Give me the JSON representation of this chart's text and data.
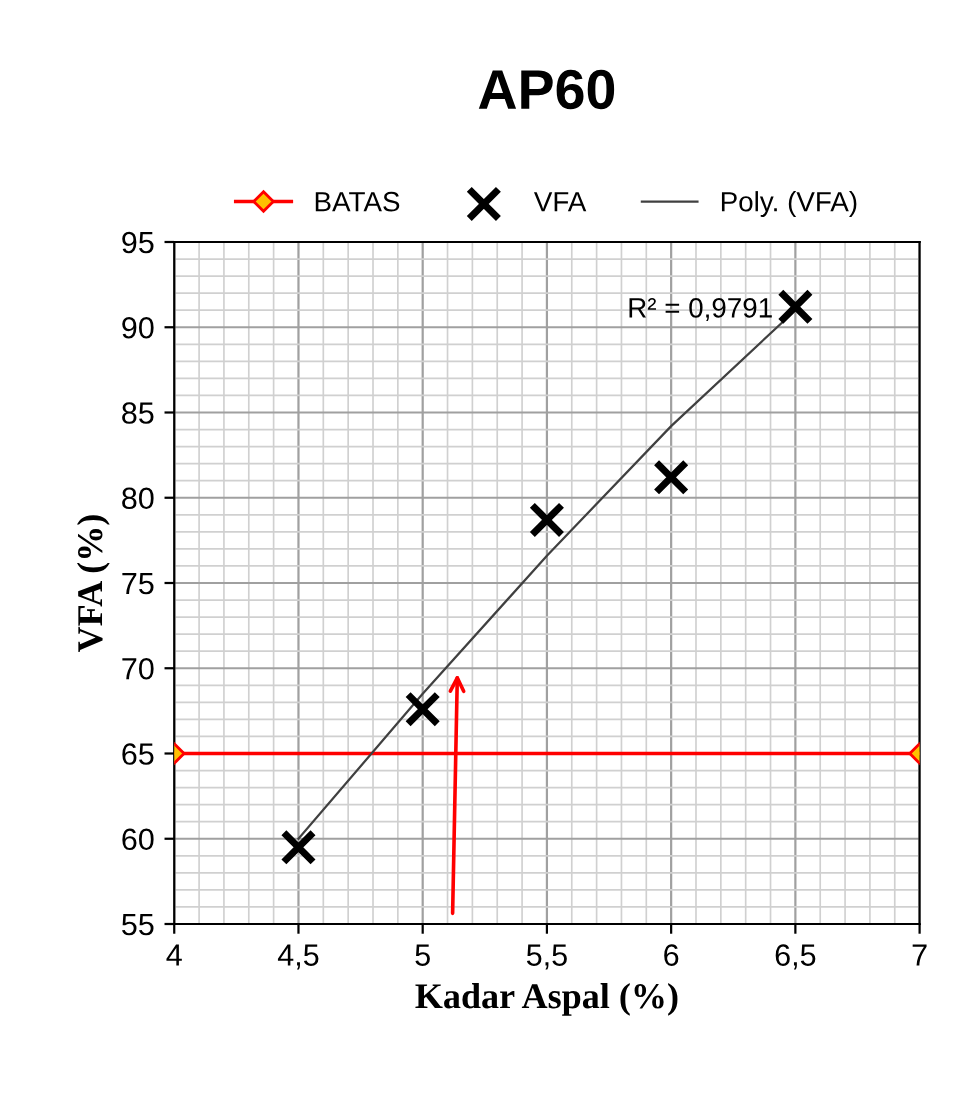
{
  "chart_data": {
    "type": "scatter",
    "title": "AP60",
    "xlabel": "Kadar Aspal (%)",
    "ylabel": "VFA (%)",
    "xlim": [
      4,
      7
    ],
    "ylim": [
      55,
      95
    ],
    "xticks": [
      4,
      {
        "value": 4.5,
        "label": "4,5"
      },
      5,
      {
        "value": 5.5,
        "label": "5,5"
      },
      6,
      {
        "value": 6.5,
        "label": "6,5"
      },
      7
    ],
    "yticks": [
      55,
      60,
      65,
      70,
      75,
      80,
      85,
      90,
      95
    ],
    "grid": true,
    "legend": "top",
    "series": [
      {
        "name": "BATAS",
        "type": "line",
        "color": "#ff0000",
        "marker": "diamond",
        "x": [
          4,
          7
        ],
        "values": [
          65,
          65
        ]
      },
      {
        "name": "VFA",
        "color": "#000000",
        "marker": "cross",
        "x": [
          4.5,
          5,
          5.5,
          6,
          6.5
        ],
        "values": [
          59.5,
          67.6,
          78.7,
          81.2,
          91.2
        ]
      },
      {
        "name": "Poly. (VFA)",
        "type": "line",
        "color": "#404040",
        "marker": "none",
        "x": [
          4.5,
          5,
          5.5,
          6,
          6.5
        ],
        "values": [
          60,
          68.5,
          76.6,
          84.2,
          91
        ]
      }
    ],
    "annotations": [
      {
        "text": "R² = 0,9791",
        "x": 6.5,
        "y": 91
      }
    ]
  }
}
